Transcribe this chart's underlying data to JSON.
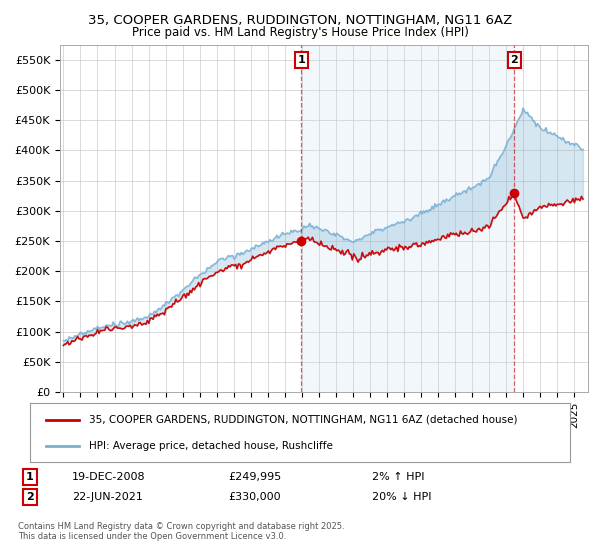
{
  "title": "35, COOPER GARDENS, RUDDINGTON, NOTTINGHAM, NG11 6AZ",
  "subtitle": "Price paid vs. HM Land Registry's House Price Index (HPI)",
  "ylabel_ticks": [
    "£0",
    "£50K",
    "£100K",
    "£150K",
    "£200K",
    "£250K",
    "£300K",
    "£350K",
    "£400K",
    "£450K",
    "£500K",
    "£550K"
  ],
  "ytick_values": [
    0,
    50000,
    100000,
    150000,
    200000,
    250000,
    300000,
    350000,
    400000,
    450000,
    500000,
    550000
  ],
  "ylim": [
    0,
    575000
  ],
  "xlim_start": 1994.8,
  "xlim_end": 2025.8,
  "property_color": "#cc0000",
  "hpi_color": "#7ab0d4",
  "fill_color": "#dce9f5",
  "transaction1_x": 2008.97,
  "transaction1_y": 249995,
  "transaction2_x": 2021.47,
  "transaction2_y": 330000,
  "transaction1_label": "1",
  "transaction2_label": "2",
  "legend_property": "35, COOPER GARDENS, RUDDINGTON, NOTTINGHAM, NG11 6AZ (detached house)",
  "legend_hpi": "HPI: Average price, detached house, Rushcliffe",
  "annotation1_date": "19-DEC-2008",
  "annotation1_price": "£249,995",
  "annotation1_hpi": "2% ↑ HPI",
  "annotation2_date": "22-JUN-2021",
  "annotation2_price": "£330,000",
  "annotation2_hpi": "20% ↓ HPI",
  "footer": "Contains HM Land Registry data © Crown copyright and database right 2025.\nThis data is licensed under the Open Government Licence v3.0.",
  "background_color": "#ffffff",
  "grid_color": "#cccccc"
}
